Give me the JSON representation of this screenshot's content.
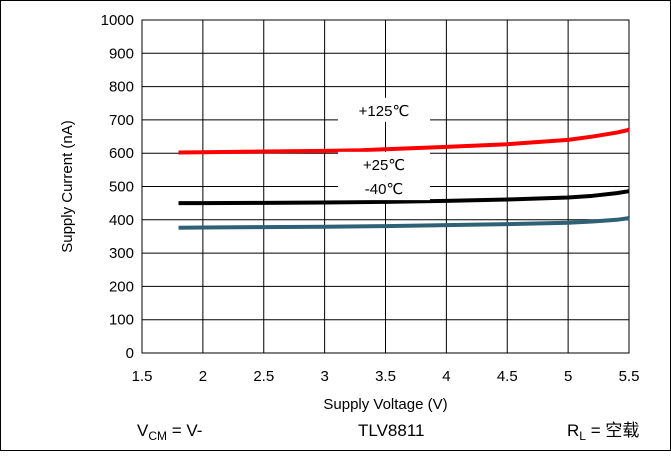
{
  "chart_data": {
    "type": "line",
    "title": "",
    "xlabel": "Supply Voltage (V)",
    "ylabel": "Supply Current  (nA)",
    "xlim": [
      1.5,
      5.5
    ],
    "ylim": [
      0,
      1000
    ],
    "xticks": [
      "1.5",
      "2",
      "2.5",
      "3",
      "3.5",
      "4",
      "4.5",
      "5",
      "5.5"
    ],
    "yticks": [
      "0",
      "100",
      "200",
      "300",
      "400",
      "500",
      "600",
      "700",
      "800",
      "900",
      "1000"
    ],
    "grid": true,
    "series": [
      {
        "name": "+125℃",
        "color": "#ff0000",
        "x": [
          1.8,
          2.0,
          2.5,
          3.0,
          3.3,
          3.5,
          4.0,
          4.5,
          5.0,
          5.2,
          5.4,
          5.5
        ],
        "values": [
          602,
          603,
          605,
          607,
          609,
          612,
          619,
          627,
          640,
          650,
          662,
          670
        ]
      },
      {
        "name": "+25℃",
        "color": "#000000",
        "x": [
          1.8,
          2.0,
          2.5,
          3.0,
          3.5,
          4.0,
          4.5,
          5.0,
          5.2,
          5.4,
          5.5
        ],
        "values": [
          450,
          450,
          451,
          452,
          454,
          457,
          461,
          467,
          472,
          480,
          486
        ]
      },
      {
        "name": "-40℃",
        "color": "#2e6176",
        "x": [
          1.8,
          2.0,
          2.5,
          3.0,
          3.5,
          4.0,
          4.5,
          5.0,
          5.2,
          5.4,
          5.5
        ],
        "values": [
          376,
          377,
          378,
          379,
          381,
          384,
          387,
          391,
          395,
          400,
          405
        ]
      }
    ]
  },
  "footer": {
    "vcm_main": "V",
    "vcm_sub": "CM",
    "vcm_rest": " = V-",
    "device": "TLV8811",
    "rl_main": "R",
    "rl_sub": "L",
    "rl_rest": " = 空载"
  }
}
